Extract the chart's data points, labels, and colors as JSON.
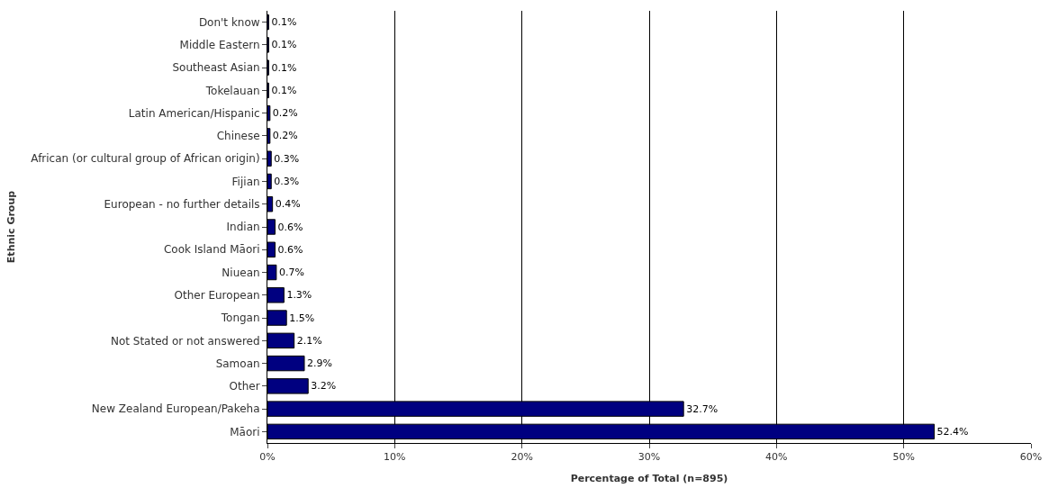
{
  "chart_data": {
    "type": "bar",
    "orientation": "horizontal",
    "xlabel": "Percentage of Total (n=895)",
    "ylabel": "Ethnic Group",
    "categories": [
      "Don't know",
      "Middle Eastern",
      "Southeast Asian",
      "Tokelauan",
      "Latin American/Hispanic",
      "Chinese",
      "African (or cultural group of African origin)",
      "Fijian",
      "European - no further details",
      "Indian",
      "Cook Island Māori",
      "Niuean",
      "Other European",
      "Tongan",
      "Not Stated or not answered",
      "Samoan",
      "Other",
      "New Zealand European/Pakeha",
      "Māori"
    ],
    "values": [
      0.1,
      0.1,
      0.1,
      0.1,
      0.2,
      0.2,
      0.3,
      0.3,
      0.4,
      0.6,
      0.6,
      0.7,
      1.3,
      1.5,
      2.1,
      2.9,
      3.2,
      32.7,
      52.4
    ],
    "value_labels": [
      "0.1%",
      "0.1%",
      "0.1%",
      "0.1%",
      "0.2%",
      "0.2%",
      "0.3%",
      "0.3%",
      "0.4%",
      "0.6%",
      "0.6%",
      "0.7%",
      "1.3%",
      "1.5%",
      "2.1%",
      "2.9%",
      "3.2%",
      "32.7%",
      "52.4%"
    ],
    "color": "#000080",
    "xlim": [
      0,
      60
    ],
    "xticks": [
      {
        "value": 0,
        "label": "0%"
      },
      {
        "value": 10,
        "label": "10%"
      },
      {
        "value": 20,
        "label": "20%"
      },
      {
        "value": 30,
        "label": "30%"
      },
      {
        "value": 40,
        "label": "40%"
      },
      {
        "value": 50,
        "label": "50%"
      },
      {
        "value": 60,
        "label": "60%"
      }
    ],
    "grid": "x",
    "legend": false
  }
}
